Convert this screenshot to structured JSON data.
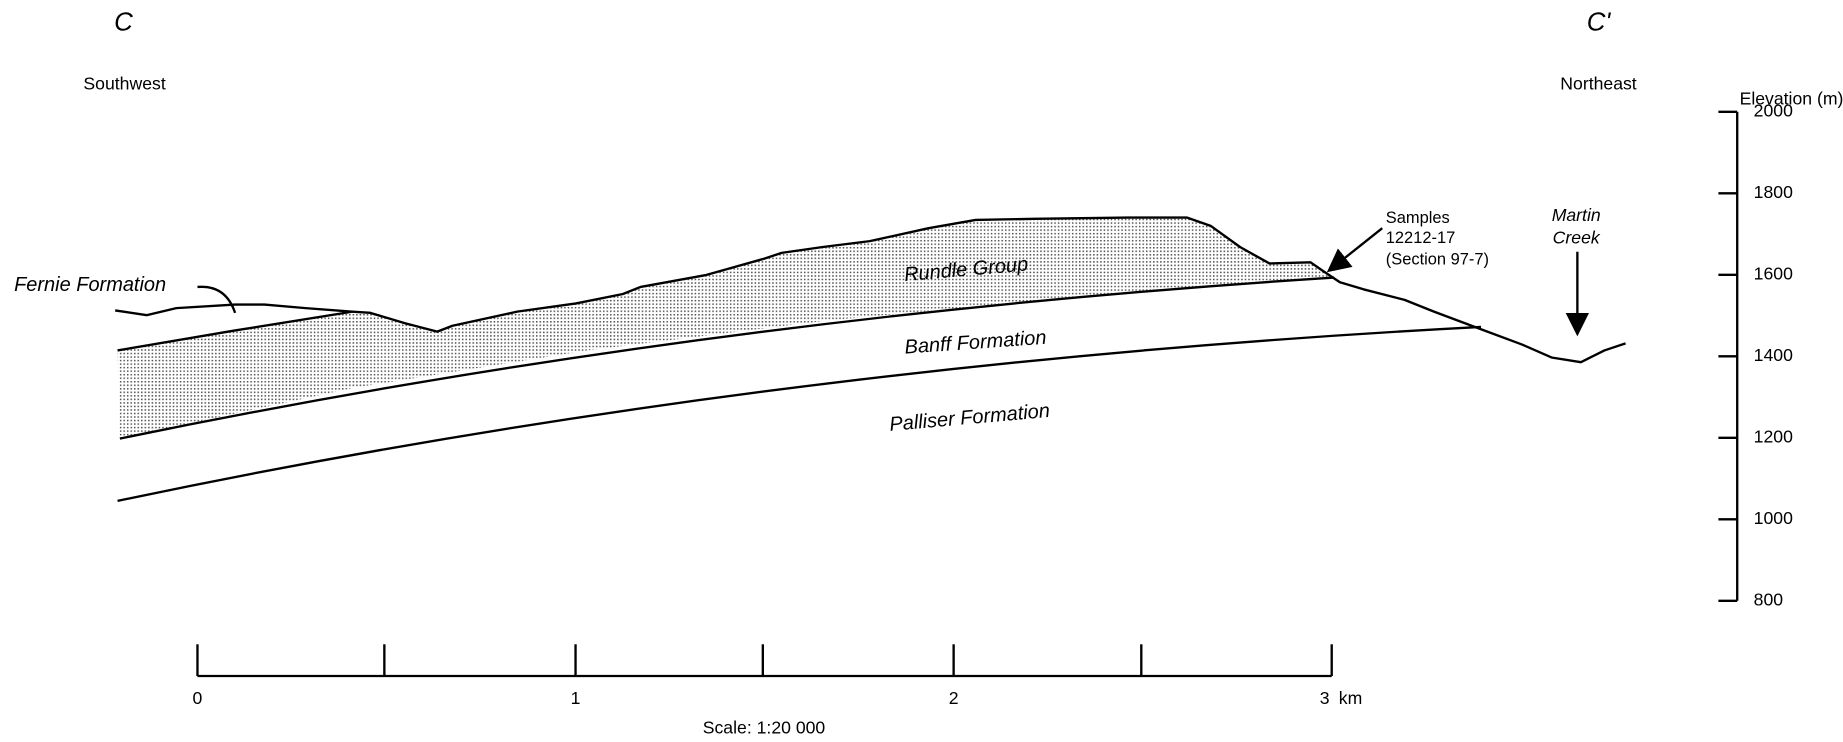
{
  "section": {
    "start_label": "C",
    "end_label": "C'",
    "start_direction": "Southwest",
    "end_direction": "Northeast"
  },
  "formations": [
    "Fernie Formation",
    "Rundle Group",
    "Banff Formation",
    "Palliser Formation"
  ],
  "annotations": {
    "samples": [
      "Samples",
      "12212-17",
      "(Section 97-7)"
    ],
    "creek": [
      "Martin",
      "Creek"
    ]
  },
  "elevation_axis": {
    "label": "Elevation (m)",
    "ticks": [
      2000,
      1800,
      1600,
      1400,
      1200,
      1000,
      800
    ]
  },
  "scale_bar": {
    "ticks": [
      "0",
      "1",
      "2",
      "3"
    ],
    "unit": "km",
    "caption": "Scale:  1:20 000"
  }
}
